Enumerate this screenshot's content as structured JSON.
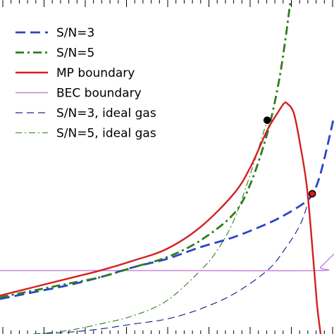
{
  "chart_data": {
    "type": "line",
    "title": "",
    "xlabel": "",
    "ylabel": "",
    "xlim": [
      0,
      1
    ],
    "ylim": [
      0,
      1
    ],
    "grid": false,
    "legend_placement": "top-left",
    "series": [
      {
        "name": "S/N=3",
        "color": "#2a45c8",
        "style": "dashed-thick",
        "x": [
          0,
          0.1,
          0.2,
          0.3,
          0.4,
          0.5,
          0.6,
          0.7,
          0.8,
          0.85,
          0.9,
          0.93,
          0.95,
          0.97,
          1.0
        ],
        "y": [
          0.105,
          0.125,
          0.145,
          0.17,
          0.2,
          0.225,
          0.26,
          0.29,
          0.33,
          0.355,
          0.385,
          0.41,
          0.45,
          0.52,
          0.65
        ]
      },
      {
        "name": "S/N=5",
        "color": "#2e7d1e",
        "style": "dashdot-thick",
        "x": [
          0,
          0.1,
          0.2,
          0.3,
          0.4,
          0.5,
          0.6,
          0.7,
          0.75,
          0.8,
          0.83,
          0.85,
          0.87
        ],
        "y": [
          0.11,
          0.13,
          0.15,
          0.17,
          0.2,
          0.23,
          0.28,
          0.36,
          0.45,
          0.6,
          0.73,
          0.85,
          1.0
        ]
      },
      {
        "name": "MP boundary",
        "color": "#d42020",
        "style": "solid-thick",
        "x": [
          0,
          0.1,
          0.2,
          0.3,
          0.4,
          0.5,
          0.6,
          0.7,
          0.75,
          0.8,
          0.83,
          0.85,
          0.86,
          0.88,
          0.9,
          0.92,
          0.94,
          0.95,
          0.96
        ],
        "y": [
          0.115,
          0.14,
          0.165,
          0.19,
          0.22,
          0.255,
          0.32,
          0.42,
          0.5,
          0.61,
          0.66,
          0.69,
          0.69,
          0.66,
          0.56,
          0.43,
          0.2,
          0.08,
          0.0
        ]
      },
      {
        "name": "BEC boundary",
        "color": "#c77fd8",
        "style": "solid-thin",
        "x": [
          0,
          0.5,
          0.95,
          0.96,
          1.0
        ],
        "y": [
          0.19,
          0.19,
          0.19,
          0.2,
          0.24
        ]
      },
      {
        "name": "S/N=3, ideal gas",
        "color": "#1c2a8c",
        "style": "dashed-thin",
        "x": [
          0.1,
          0.2,
          0.3,
          0.4,
          0.5,
          0.6,
          0.7,
          0.8,
          0.85,
          0.9,
          0.93
        ],
        "y": [
          0.0,
          0.005,
          0.015,
          0.03,
          0.045,
          0.075,
          0.12,
          0.19,
          0.25,
          0.33,
          0.42
        ]
      },
      {
        "name": "S/N=5, ideal gas",
        "color": "#2e7d1e",
        "style": "dashdot-thin",
        "x": [
          0.1,
          0.2,
          0.3,
          0.4,
          0.5,
          0.6,
          0.65,
          0.7,
          0.75,
          0.8
        ],
        "y": [
          0.0,
          0.01,
          0.03,
          0.055,
          0.1,
          0.19,
          0.25,
          0.34,
          0.48,
          0.64
        ]
      }
    ],
    "markers": [
      {
        "name": "intersection-mp-sn5",
        "x": 0.8,
        "y": 0.64,
        "fill": "#000000",
        "stroke": "#000000"
      },
      {
        "name": "intersection-mp-sn3",
        "x": 0.935,
        "y": 0.42,
        "fill": "#d42020",
        "stroke": "#000000"
      }
    ]
  }
}
